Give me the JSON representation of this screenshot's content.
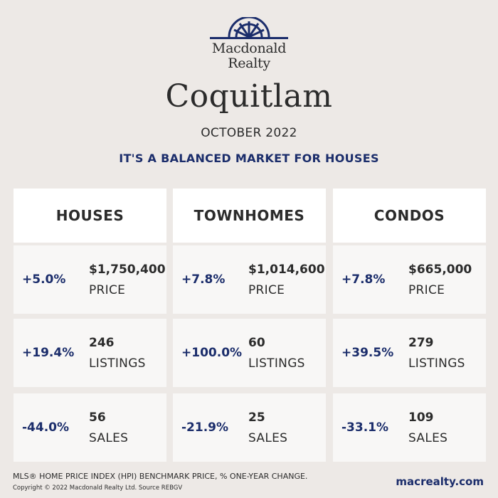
{
  "logo": {
    "line1": "Macdonald",
    "line2": "Realty"
  },
  "city": "Coquitlam",
  "period": "OCTOBER 2022",
  "headline": "IT'S A BALANCED MARKET FOR HOUSES",
  "accent_color": "#1b2d6b",
  "columns": [
    {
      "title": "HOUSES",
      "stats": [
        {
          "change": "+5.0%",
          "value": "$1,750,400",
          "label": "PRICE"
        },
        {
          "change": "+19.4%",
          "value": "246",
          "label": "LISTINGS"
        },
        {
          "change": "-44.0%",
          "value": "56",
          "label": "SALES"
        }
      ]
    },
    {
      "title": "TOWNHOMES",
      "stats": [
        {
          "change": "+7.8%",
          "value": "$1,014,600",
          "label": "PRICE"
        },
        {
          "change": "+100.0%",
          "value": "60",
          "label": "LISTINGS"
        },
        {
          "change": "-21.9%",
          "value": "25",
          "label": "SALES"
        }
      ]
    },
    {
      "title": "CONDOS",
      "stats": [
        {
          "change": "+7.8%",
          "value": "$665,000",
          "label": "PRICE"
        },
        {
          "change": "+39.5%",
          "value": "279",
          "label": "LISTINGS"
        },
        {
          "change": "-33.1%",
          "value": "109",
          "label": "SALES"
        }
      ]
    }
  ],
  "footer": {
    "note": "MLS® HOME PRICE INDEX (HPI) BENCHMARK PRICE, % ONE-YEAR CHANGE.",
    "copyright": "Copyright © 2022 Macdonald Realty Ltd. Source REBGV",
    "website": "macrealty.com"
  }
}
